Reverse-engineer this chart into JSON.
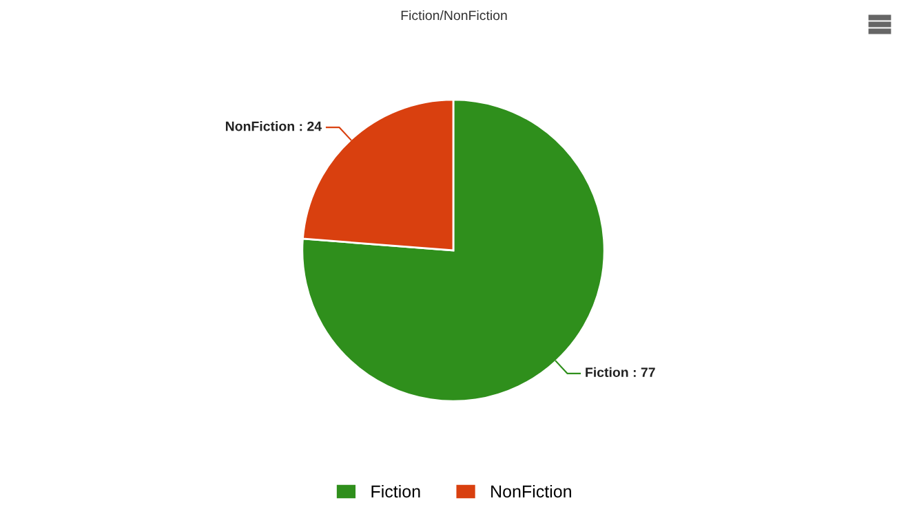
{
  "chart_data": {
    "type": "pie",
    "title": "Fiction/NonFiction",
    "categories": [
      "Fiction",
      "NonFiction"
    ],
    "values": [
      77,
      24
    ],
    "colors": [
      "#2f8f1c",
      "#d9400f"
    ],
    "value_labels": [
      "Fiction : 77",
      "NonFiction : 24"
    ],
    "legend": "bottom"
  }
}
